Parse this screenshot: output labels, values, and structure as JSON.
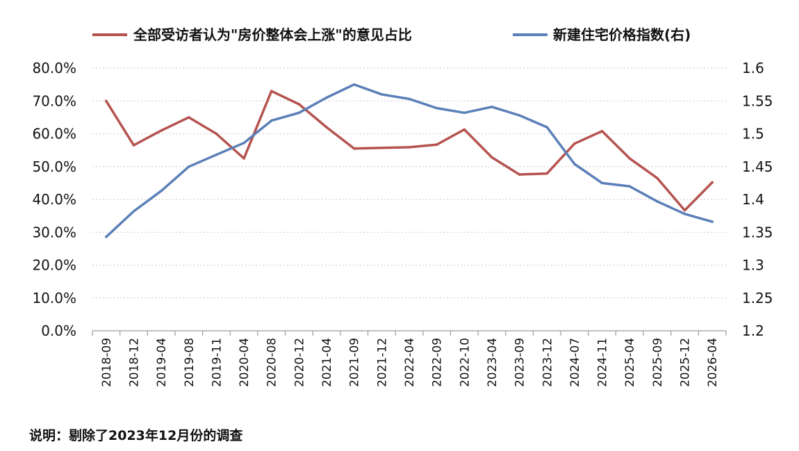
{
  "chart_data": {
    "type": "line",
    "title": "",
    "categories": [
      "2018-09",
      "2018-12",
      "2019-04",
      "2019-08",
      "2019-11",
      "2020-04",
      "2020-08",
      "2020-12",
      "2021-04",
      "2021-09",
      "2021-12",
      "2022-04",
      "2022-09",
      "2022-10",
      "2023-04",
      "2023-09",
      "2023-12",
      "2024-07",
      "2024-11",
      "2025-04",
      "2025-09",
      "2025-12",
      "2026-04"
    ],
    "series": [
      {
        "name": "全部受访者认为\"房价整体会上涨\"的意见占比",
        "axis": "left",
        "color": "#b5534f",
        "values": [
          0.7,
          0.565,
          0.61,
          0.65,
          0.6,
          0.525,
          0.73,
          0.69,
          0.62,
          0.555,
          0.557,
          0.559,
          0.567,
          0.613,
          0.528,
          0.476,
          0.479,
          0.57,
          0.608,
          0.525,
          0.465,
          0.367,
          0.452
        ]
      },
      {
        "name": "新建住宅价格指数(右)",
        "axis": "right",
        "color": "#5b7fb8",
        "values": [
          1.343,
          1.382,
          1.413,
          1.45,
          1.468,
          1.486,
          1.52,
          1.532,
          1.555,
          1.575,
          1.56,
          1.553,
          1.539,
          1.532,
          1.541,
          1.528,
          1.51,
          1.454,
          1.425,
          1.42,
          1.397,
          1.378,
          1.366
        ]
      }
    ],
    "ylim_left": [
      0,
      0.8
    ],
    "yticks_left": [
      "0.0%",
      "10.0%",
      "20.0%",
      "30.0%",
      "40.0%",
      "50.0%",
      "60.0%",
      "70.0%",
      "80.0%"
    ],
    "ylim_right": [
      1.2,
      1.6
    ],
    "yticks_right": [
      "1.2",
      "1.25",
      "1.3",
      "1.35",
      "1.4",
      "1.45",
      "1.5",
      "1.55",
      "1.6"
    ],
    "grid": true,
    "legend_position": "top"
  },
  "note": "说明：剔除了2023年12月份的调查"
}
